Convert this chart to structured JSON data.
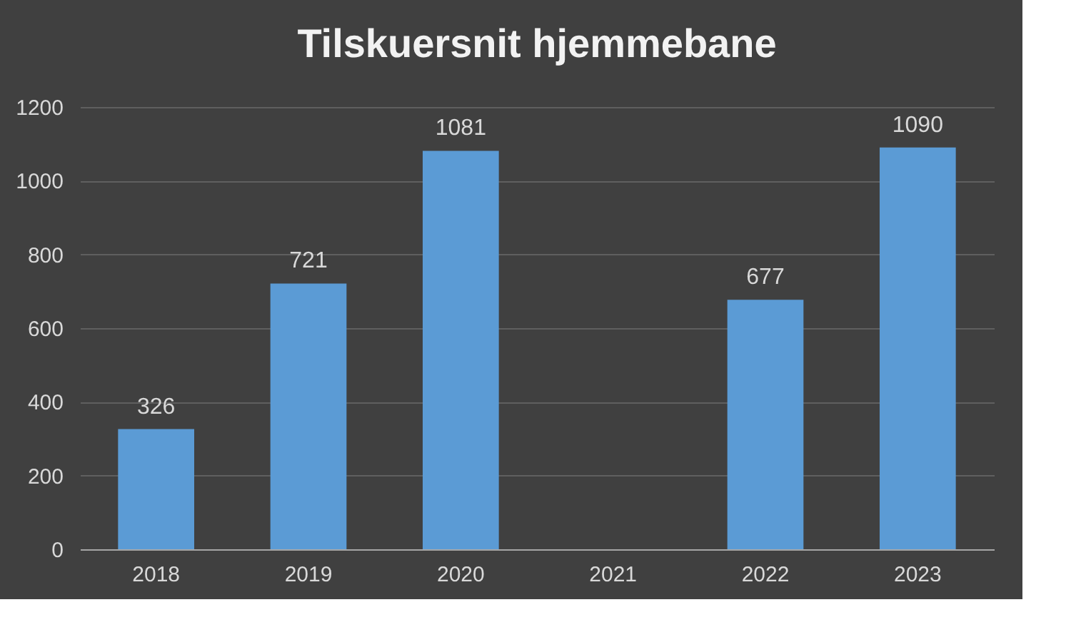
{
  "chart_data": {
    "type": "bar",
    "title": "Tilskuersnit hjemmebane",
    "categories": [
      "2018",
      "2019",
      "2020",
      "2021",
      "2022",
      "2023"
    ],
    "values": [
      326,
      721,
      1081,
      null,
      677,
      1090
    ],
    "color": "#5b9bd5",
    "ylim": [
      0,
      1200
    ],
    "yticks": [
      0,
      200,
      400,
      600,
      800,
      1000,
      1200
    ],
    "grid": "y",
    "data_labels": true
  }
}
